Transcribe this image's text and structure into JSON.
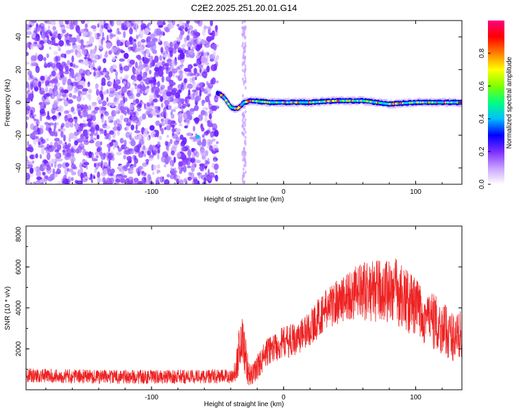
{
  "title": "C2E2.2025.251.20.01.G14",
  "chart_data": [
    {
      "type": "heatmap",
      "xlabel": "Height of straight line (km)",
      "ylabel": "Frequency (Hz)",
      "xlim": [
        -195,
        135
      ],
      "ylim": [
        -50,
        50
      ],
      "xticks": [
        -100,
        0,
        100
      ],
      "yticks": [
        -40,
        -20,
        0,
        20,
        40
      ],
      "noise_region_end_x": -50,
      "transition_region": [
        -50,
        -30
      ],
      "spur_x": -30,
      "signal_trace": [
        [
          -50,
          6
        ],
        [
          -45,
          3
        ],
        [
          -40,
          -3
        ],
        [
          -35,
          -4
        ],
        [
          -30,
          0
        ],
        [
          -25,
          1
        ],
        [
          -10,
          0
        ],
        [
          0,
          0
        ],
        [
          20,
          0
        ],
        [
          40,
          1
        ],
        [
          60,
          1
        ],
        [
          80,
          -1
        ],
        [
          100,
          0
        ],
        [
          135,
          0
        ]
      ],
      "colorbar": {
        "label": "Normalized spectral amplitude",
        "range": [
          0,
          1
        ],
        "ticks": [
          "0.0",
          "0.2",
          "0.4",
          "0.6",
          "0.8"
        ],
        "colors": [
          "#ffffff",
          "#c8a0ff",
          "#7b2dff",
          "#0000ff",
          "#00bfff",
          "#00ff80",
          "#80ff00",
          "#ffff00",
          "#ff8000",
          "#ff0000",
          "#ff0080"
        ]
      }
    },
    {
      "type": "line",
      "xlabel": "Height of straight line (km)",
      "ylabel": "SNR (10 * v/v)",
      "xlim": [
        -195,
        135
      ],
      "ylim": [
        0,
        8000
      ],
      "xticks": [
        -100,
        0,
        100
      ],
      "yticks": [
        2000,
        4000,
        6000,
        8000
      ],
      "color": "#ee2222",
      "envelope": {
        "x": [
          -195,
          -150,
          -100,
          -60,
          -38,
          -35,
          -32,
          -30,
          -28,
          -25,
          -22,
          -15,
          -10,
          0,
          10,
          20,
          30,
          40,
          50,
          60,
          70,
          80,
          85,
          90,
          100,
          110,
          120,
          130,
          135
        ],
        "mean": [
          700,
          650,
          620,
          650,
          650,
          1500,
          2500,
          2200,
          1200,
          600,
          900,
          1600,
          2000,
          2300,
          2500,
          3000,
          3800,
          4300,
          4600,
          4800,
          4800,
          4900,
          4800,
          4500,
          4000,
          3500,
          3000,
          2500,
          2800
        ],
        "amp": [
          350,
          350,
          350,
          350,
          350,
          1000,
          1200,
          1200,
          900,
          500,
          600,
          700,
          700,
          800,
          800,
          900,
          1000,
          1100,
          1300,
          1400,
          1500,
          1600,
          1700,
          1600,
          1500,
          1400,
          1300,
          1200,
          1200
        ]
      }
    }
  ]
}
